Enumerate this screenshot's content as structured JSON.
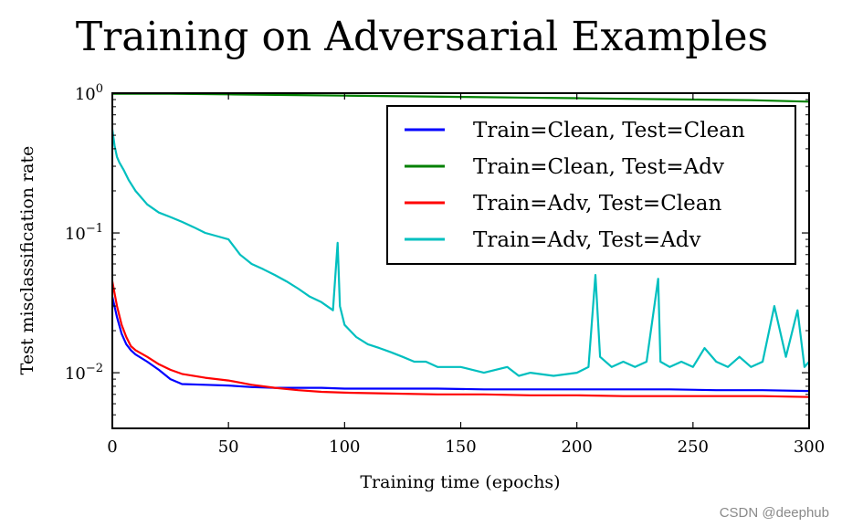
{
  "chart_data": {
    "type": "line",
    "title": "Training on Adversarial Examples",
    "xlabel": "Training time (epochs)",
    "ylabel": "Test misclassification rate",
    "xlim": [
      0,
      300
    ],
    "ylim": [
      0.004,
      1.0
    ],
    "yscale": "log",
    "xticks": [
      0,
      50,
      100,
      150,
      200,
      250,
      300
    ],
    "yticks": [
      {
        "value": 1,
        "base": "10",
        "exp": "0"
      },
      {
        "value": 0.1,
        "base": "10",
        "exp": "−1"
      },
      {
        "value": 0.01,
        "base": "10",
        "exp": "−2"
      }
    ],
    "grid": false,
    "legend_position": "top-right",
    "series": [
      {
        "name": "Train=Clean, Test=Clean",
        "color": "#0000ff",
        "x": [
          0,
          2,
          4,
          6,
          8,
          10,
          15,
          20,
          25,
          30,
          40,
          50,
          60,
          70,
          80,
          90,
          100,
          120,
          140,
          160,
          180,
          200,
          220,
          240,
          260,
          280,
          300
        ],
        "y": [
          0.035,
          0.025,
          0.019,
          0.016,
          0.0145,
          0.0135,
          0.012,
          0.0105,
          0.009,
          0.0083,
          0.0082,
          0.0081,
          0.0079,
          0.0078,
          0.0078,
          0.0078,
          0.0077,
          0.0077,
          0.0077,
          0.0076,
          0.0076,
          0.0076,
          0.0076,
          0.0076,
          0.0075,
          0.0075,
          0.0074
        ]
      },
      {
        "name": "Train=Clean, Test=Adv",
        "color": "#008000",
        "x": [
          0,
          25,
          50,
          75,
          100,
          125,
          150,
          175,
          200,
          225,
          250,
          275,
          300
        ],
        "y": [
          0.99,
          0.99,
          0.98,
          0.97,
          0.96,
          0.95,
          0.94,
          0.93,
          0.92,
          0.91,
          0.9,
          0.89,
          0.87
        ]
      },
      {
        "name": "Train=Adv, Test=Clean",
        "color": "#ff0000",
        "x": [
          0,
          2,
          4,
          6,
          8,
          10,
          15,
          20,
          25,
          30,
          40,
          50,
          60,
          70,
          80,
          90,
          100,
          120,
          140,
          160,
          180,
          200,
          220,
          240,
          260,
          280,
          300
        ],
        "y": [
          0.045,
          0.03,
          0.022,
          0.018,
          0.0155,
          0.0145,
          0.013,
          0.0115,
          0.0105,
          0.0098,
          0.0092,
          0.0088,
          0.0082,
          0.0078,
          0.0075,
          0.0073,
          0.0072,
          0.0071,
          0.007,
          0.007,
          0.0069,
          0.0069,
          0.0068,
          0.0068,
          0.0068,
          0.0068,
          0.0067
        ]
      },
      {
        "name": "Train=Adv, Test=Adv",
        "color": "#00bfbf",
        "x": [
          0,
          1,
          2,
          3,
          5,
          7,
          10,
          15,
          20,
          25,
          30,
          35,
          40,
          45,
          50,
          55,
          60,
          65,
          70,
          75,
          80,
          85,
          90,
          95,
          97,
          98,
          100,
          105,
          110,
          115,
          120,
          125,
          130,
          135,
          140,
          145,
          150,
          160,
          170,
          175,
          180,
          190,
          200,
          205,
          208,
          210,
          215,
          220,
          225,
          230,
          235,
          236,
          240,
          245,
          250,
          255,
          260,
          265,
          270,
          275,
          280,
          285,
          290,
          295,
          298,
          300
        ],
        "y": [
          0.55,
          0.42,
          0.35,
          0.32,
          0.28,
          0.24,
          0.2,
          0.16,
          0.14,
          0.13,
          0.12,
          0.11,
          0.1,
          0.095,
          0.09,
          0.07,
          0.06,
          0.055,
          0.05,
          0.045,
          0.04,
          0.035,
          0.032,
          0.028,
          0.085,
          0.03,
          0.022,
          0.018,
          0.016,
          0.015,
          0.014,
          0.013,
          0.012,
          0.012,
          0.011,
          0.011,
          0.011,
          0.01,
          0.011,
          0.0095,
          0.01,
          0.0095,
          0.01,
          0.011,
          0.05,
          0.013,
          0.011,
          0.012,
          0.011,
          0.012,
          0.047,
          0.012,
          0.011,
          0.012,
          0.011,
          0.015,
          0.012,
          0.011,
          0.013,
          0.011,
          0.012,
          0.03,
          0.013,
          0.028,
          0.011,
          0.012
        ]
      }
    ]
  },
  "watermark": "CSDN @deephub"
}
